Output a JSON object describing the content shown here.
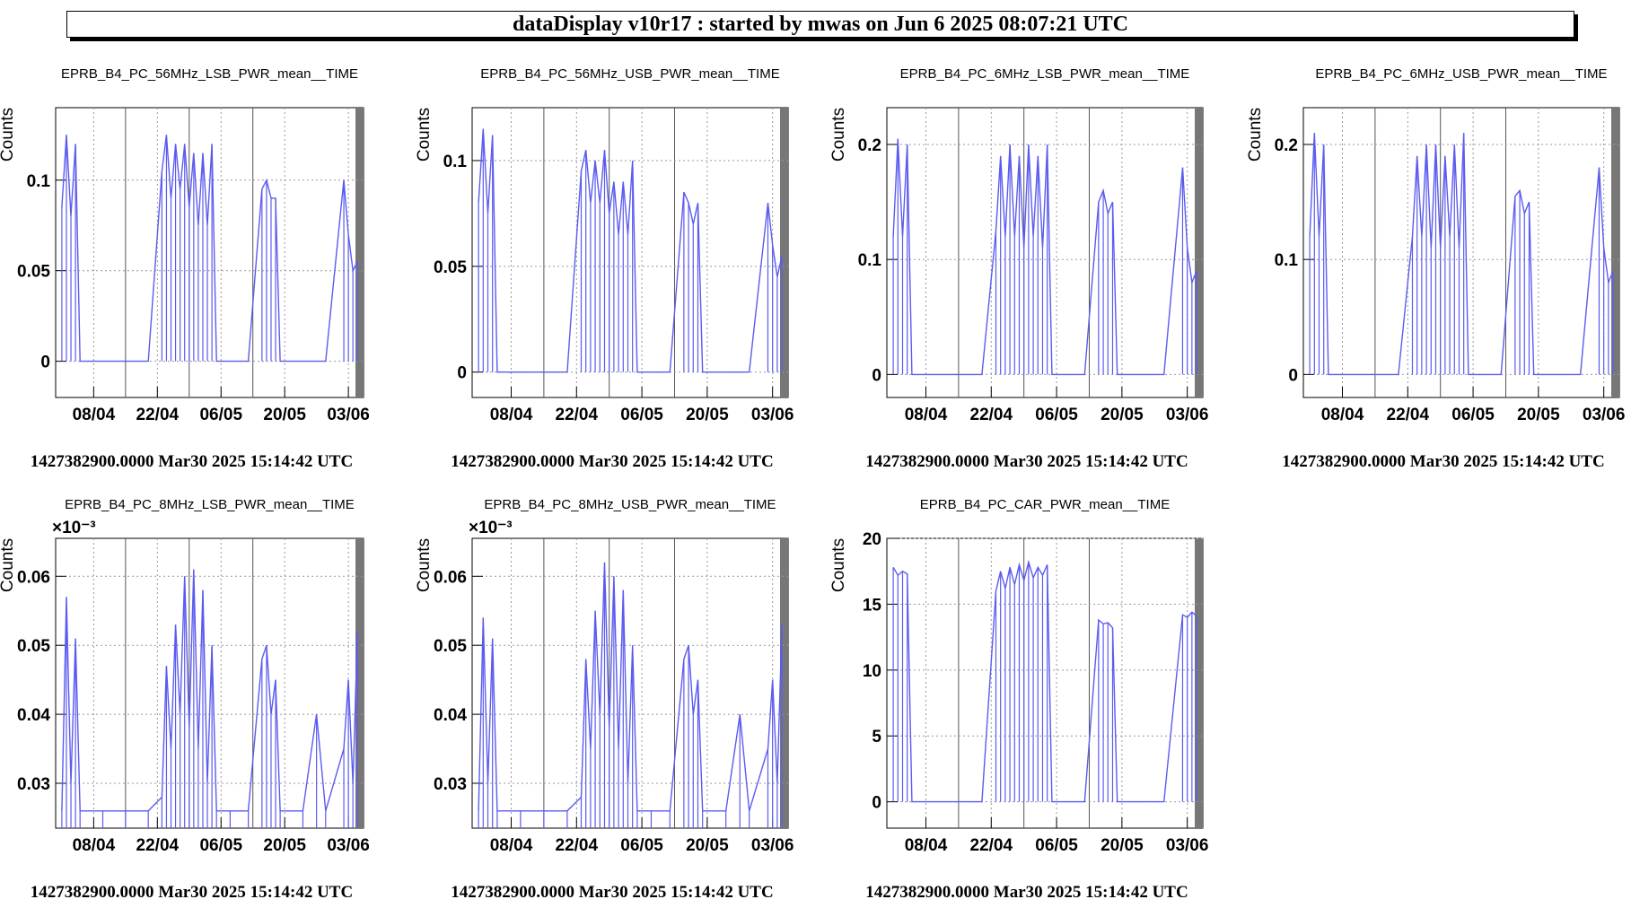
{
  "header": {
    "title": "dataDisplay v10r17 : started by mwas on Jun  6 2025 08:07:21 UTC"
  },
  "chart_data": [
    {
      "type": "line",
      "title": "EPRB_B4_PC_56MHz_LSB_PWR_mean__TIME",
      "ylabel": "Counts",
      "ylim": [
        -0.02,
        0.14
      ],
      "yticks": [
        0,
        0.05,
        0.1
      ],
      "xticks": [
        "08/04",
        "22/04",
        "06/05",
        "20/05",
        "03/06"
      ],
      "footer": "1427382900.0000 Mar30 2025 15:14:42 UTC",
      "color": "#5b5bf0",
      "x": [
        "01/04",
        "02/04",
        "03/04",
        "04/04",
        "05/04",
        "10/04",
        "15/04",
        "20/04",
        "23/04",
        "24/04",
        "25/04",
        "26/04",
        "27/04",
        "28/04",
        "29/04",
        "30/04",
        "01/05",
        "02/05",
        "03/05",
        "04/05",
        "05/05",
        "08/05",
        "12/05",
        "15/05",
        "16/05",
        "17/05",
        "18/05",
        "19/05",
        "24/05",
        "29/05",
        "02/06",
        "03/06",
        "04/06",
        "05/06"
      ],
      "y": [
        0.085,
        0.125,
        0.08,
        0.12,
        0,
        0,
        0,
        0,
        0.105,
        0.125,
        0.09,
        0.12,
        0.095,
        0.12,
        0.085,
        0.115,
        0.075,
        0.115,
        0.075,
        0.12,
        0,
        0,
        0,
        0.095,
        0.1,
        0.09,
        0.09,
        0,
        0,
        0,
        0.1,
        0.07,
        0.05,
        0.055
      ]
    },
    {
      "type": "line",
      "title": "EPRB_B4_PC_56MHz_USB_PWR_mean__TIME",
      "ylabel": "Counts",
      "ylim": [
        -0.012,
        0.125
      ],
      "yticks": [
        0,
        0.05,
        0.1
      ],
      "xticks": [
        "08/04",
        "22/04",
        "06/05",
        "20/05",
        "03/06"
      ],
      "footer": "1427382900.0000 Mar30 2025 15:14:42 UTC",
      "color": "#5b5bf0",
      "x": [
        "01/04",
        "02/04",
        "03/04",
        "04/04",
        "05/04",
        "10/04",
        "15/04",
        "20/04",
        "23/04",
        "24/04",
        "25/04",
        "26/04",
        "27/04",
        "28/04",
        "29/04",
        "30/04",
        "01/05",
        "02/05",
        "03/05",
        "04/05",
        "05/05",
        "08/05",
        "12/05",
        "15/05",
        "16/05",
        "17/05",
        "18/05",
        "19/05",
        "24/05",
        "29/05",
        "02/06",
        "03/06",
        "04/06",
        "05/06"
      ],
      "y": [
        0.08,
        0.115,
        0.075,
        0.112,
        0,
        0,
        0,
        0,
        0.095,
        0.105,
        0.08,
        0.1,
        0.08,
        0.105,
        0.075,
        0.09,
        0.065,
        0.09,
        0.065,
        0.1,
        0,
        0,
        0,
        0.085,
        0.08,
        0.07,
        0.08,
        0,
        0,
        0,
        0.08,
        0.06,
        0.045,
        0.055
      ]
    },
    {
      "type": "line",
      "title": "EPRB_B4_PC_6MHz_LSB_PWR_mean__TIME",
      "ylabel": "Counts",
      "ylim": [
        -0.02,
        0.232
      ],
      "yticks": [
        0,
        0.1,
        0.2
      ],
      "xticks": [
        "08/04",
        "22/04",
        "06/05",
        "20/05",
        "03/06"
      ],
      "footer": "1427382900.0000 Mar30 2025 15:14:42 UTC",
      "color": "#5b5bf0",
      "x": [
        "01/04",
        "02/04",
        "03/04",
        "04/04",
        "05/04",
        "10/04",
        "15/04",
        "20/04",
        "23/04",
        "24/04",
        "25/04",
        "26/04",
        "27/04",
        "28/04",
        "29/04",
        "30/04",
        "01/05",
        "02/05",
        "03/05",
        "04/05",
        "05/05",
        "08/05",
        "12/05",
        "15/05",
        "16/05",
        "17/05",
        "18/05",
        "19/05",
        "24/05",
        "29/05",
        "02/06",
        "03/06",
        "04/06",
        "05/06"
      ],
      "y": [
        0.12,
        0.205,
        0.12,
        0.2,
        0,
        0,
        0,
        0,
        0.125,
        0.19,
        0.12,
        0.2,
        0.12,
        0.19,
        0.11,
        0.2,
        0.12,
        0.19,
        0.11,
        0.2,
        0,
        0,
        0,
        0.15,
        0.16,
        0.14,
        0.15,
        0,
        0,
        0,
        0.18,
        0.11,
        0.08,
        0.09
      ]
    },
    {
      "type": "line",
      "title": "EPRB_B4_PC_6MHz_USB_PWR_mean__TIME",
      "ylabel": "Counts",
      "ylim": [
        -0.02,
        0.232
      ],
      "yticks": [
        0,
        0.1,
        0.2
      ],
      "xticks": [
        "08/04",
        "22/04",
        "06/05",
        "20/05",
        "03/06"
      ],
      "footer": "1427382900.0000 Mar30 2025 15:14:42 UTC",
      "color": "#5b5bf0",
      "x": [
        "01/04",
        "02/04",
        "03/04",
        "04/04",
        "05/04",
        "10/04",
        "15/04",
        "20/04",
        "23/04",
        "24/04",
        "25/04",
        "26/04",
        "27/04",
        "28/04",
        "29/04",
        "30/04",
        "01/05",
        "02/05",
        "03/05",
        "04/05",
        "05/05",
        "08/05",
        "12/05",
        "15/05",
        "16/05",
        "17/05",
        "18/05",
        "19/05",
        "24/05",
        "29/05",
        "02/06",
        "03/06",
        "04/06",
        "05/06"
      ],
      "y": [
        0.12,
        0.21,
        0.12,
        0.2,
        0,
        0,
        0,
        0,
        0.12,
        0.19,
        0.12,
        0.2,
        0.11,
        0.2,
        0.11,
        0.19,
        0.12,
        0.2,
        0.11,
        0.21,
        0,
        0,
        0,
        0.155,
        0.16,
        0.14,
        0.15,
        0,
        0,
        0,
        0.18,
        0.11,
        0.08,
        0.09
      ]
    },
    {
      "type": "line",
      "title": "EPRB_B4_PC_8MHz_LSB_PWR_mean__TIME",
      "ylabel": "Counts",
      "exponent": "×10⁻³",
      "ylim": [
        0.0235,
        0.0655
      ],
      "yticks": [
        0.03,
        0.04,
        0.05,
        0.06
      ],
      "xticks": [
        "08/04",
        "22/04",
        "06/05",
        "20/05",
        "03/06"
      ],
      "footer": "1427382900.0000 Mar30 2025 15:14:42 UTC",
      "color": "#5b5bf0",
      "x": [
        "01/04",
        "02/04",
        "03/04",
        "04/04",
        "05/04",
        "10/04",
        "15/04",
        "20/04",
        "23/04",
        "24/04",
        "25/04",
        "26/04",
        "27/04",
        "28/04",
        "29/04",
        "30/04",
        "01/05",
        "02/05",
        "03/05",
        "04/05",
        "05/05",
        "08/05",
        "12/05",
        "15/05",
        "16/05",
        "17/05",
        "18/05",
        "19/05",
        "24/05",
        "27/05",
        "29/05",
        "02/06",
        "03/06",
        "04/06",
        "05/06"
      ],
      "y": [
        0.026,
        0.057,
        0.03,
        0.051,
        0.026,
        0.026,
        0.026,
        0.026,
        0.028,
        0.047,
        0.035,
        0.053,
        0.04,
        0.06,
        0.038,
        0.061,
        0.035,
        0.058,
        0.03,
        0.05,
        0.026,
        0.026,
        0.026,
        0.048,
        0.05,
        0.04,
        0.045,
        0.026,
        0.026,
        0.04,
        0.026,
        0.035,
        0.045,
        0.03,
        0.052
      ]
    },
    {
      "type": "line",
      "title": "EPRB_B4_PC_8MHz_USB_PWR_mean__TIME",
      "ylabel": "Counts",
      "exponent": "×10⁻³",
      "ylim": [
        0.0235,
        0.0655
      ],
      "yticks": [
        0.03,
        0.04,
        0.05,
        0.06
      ],
      "xticks": [
        "08/04",
        "22/04",
        "06/05",
        "20/05",
        "03/06"
      ],
      "footer": "1427382900.0000 Mar30 2025 15:14:42 UTC",
      "color": "#5b5bf0",
      "x": [
        "01/04",
        "02/04",
        "03/04",
        "04/04",
        "05/04",
        "10/04",
        "15/04",
        "20/04",
        "23/04",
        "24/04",
        "25/04",
        "26/04",
        "27/04",
        "28/04",
        "29/04",
        "30/04",
        "01/05",
        "02/05",
        "03/05",
        "04/05",
        "05/05",
        "08/05",
        "12/05",
        "15/05",
        "16/05",
        "17/05",
        "18/05",
        "19/05",
        "24/05",
        "27/05",
        "29/05",
        "02/06",
        "03/06",
        "04/06",
        "05/06"
      ],
      "y": [
        0.026,
        0.054,
        0.03,
        0.051,
        0.026,
        0.026,
        0.026,
        0.026,
        0.028,
        0.048,
        0.035,
        0.055,
        0.04,
        0.062,
        0.038,
        0.06,
        0.035,
        0.058,
        0.03,
        0.05,
        0.026,
        0.026,
        0.026,
        0.048,
        0.05,
        0.04,
        0.045,
        0.026,
        0.026,
        0.04,
        0.026,
        0.035,
        0.045,
        0.03,
        0.053
      ]
    },
    {
      "type": "line",
      "title": "EPRB_B4_PC_CAR_PWR_mean__TIME",
      "ylabel": "Counts",
      "ylim": [
        -2,
        20
      ],
      "yticks": [
        0,
        5,
        10,
        15,
        20
      ],
      "xticks": [
        "08/04",
        "22/04",
        "06/05",
        "20/05",
        "03/06"
      ],
      "footer": "1427382900.0000 Mar30 2025 15:14:42 UTC",
      "color": "#5b5bf0",
      "x": [
        "01/04",
        "02/04",
        "03/04",
        "04/04",
        "05/04",
        "10/04",
        "15/04",
        "20/04",
        "23/04",
        "24/04",
        "25/04",
        "26/04",
        "27/04",
        "28/04",
        "29/04",
        "30/04",
        "01/05",
        "02/05",
        "03/05",
        "04/05",
        "05/05",
        "08/05",
        "12/05",
        "15/05",
        "16/05",
        "17/05",
        "18/05",
        "19/05",
        "24/05",
        "29/05",
        "02/06",
        "03/06",
        "04/06",
        "05/06"
      ],
      "y": [
        17.8,
        17.2,
        17.5,
        17.3,
        0,
        0,
        0,
        0,
        16.0,
        17.5,
        16.2,
        17.8,
        16.5,
        18.0,
        16.8,
        18.2,
        17.0,
        17.8,
        17.2,
        18.0,
        0,
        0,
        0,
        13.8,
        13.5,
        13.6,
        13.2,
        0,
        0,
        0,
        14.2,
        14.0,
        14.4,
        14.1
      ]
    }
  ]
}
